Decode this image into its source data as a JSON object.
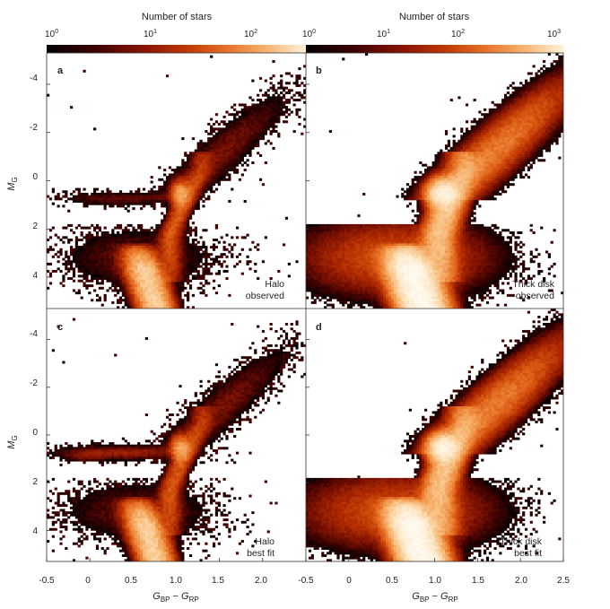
{
  "colorbars": [
    {
      "title": "Number of stars",
      "tick_labels": [
        "10",
        "10",
        "10"
      ],
      "tick_exponents": [
        "0",
        "1",
        "2"
      ]
    },
    {
      "title": "Number of stars",
      "tick_labels": [
        "10",
        "10",
        "10",
        "10"
      ],
      "tick_exponents": [
        "0",
        "1",
        "2",
        "3"
      ]
    }
  ],
  "colormap": [
    "#000000",
    "#3a0000",
    "#7a1000",
    "#b02a00",
    "#d8540e",
    "#ef8b3c",
    "#f8bf80",
    "#fde6c4",
    "#fffaf0"
  ],
  "axes": {
    "ylabel_main": "M",
    "ylabel_sub": "G",
    "xlabel_parts": [
      "G",
      "BP",
      " − ",
      "G",
      "RP"
    ],
    "xticks": [
      "-0.5",
      "0",
      "0.5",
      "1.0",
      "1.5",
      "2.0",
      "2.5"
    ],
    "yticks": [
      "-4",
      "-2",
      "0",
      "2",
      "4"
    ]
  },
  "chart_data": [
    {
      "type": "heatmap",
      "panel": "a",
      "annotation": [
        "Halo",
        "observed"
      ],
      "xlim": [
        -0.5,
        2.5
      ],
      "ylim": [
        5.3,
        -5.3
      ],
      "xlabel": "",
      "ylabel": "M_G",
      "color_scale": "log",
      "color_range": [
        1,
        300
      ]
    },
    {
      "type": "heatmap",
      "panel": "b",
      "annotation": [
        "Thick disk",
        "observed"
      ],
      "xlim": [
        -0.5,
        2.5
      ],
      "ylim": [
        5.3,
        -5.3
      ],
      "xlabel": "",
      "ylabel": "",
      "color_scale": "log",
      "color_range": [
        1,
        1000
      ]
    },
    {
      "type": "heatmap",
      "panel": "c",
      "annotation": [
        "Halo",
        "best fit"
      ],
      "xlim": [
        -0.5,
        2.5
      ],
      "ylim": [
        5.3,
        -5.3
      ],
      "xlabel": "G_BP − G_RP",
      "ylabel": "M_G",
      "color_scale": "log",
      "color_range": [
        1,
        300
      ]
    },
    {
      "type": "heatmap",
      "panel": "d",
      "annotation": [
        "Thick disk",
        "best fit"
      ],
      "xlim": [
        -0.5,
        2.5
      ],
      "ylim": [
        5.3,
        -5.3
      ],
      "xlabel": "G_BP − G_RP",
      "ylabel": "",
      "color_scale": "log",
      "color_range": [
        1,
        1000
      ]
    }
  ]
}
